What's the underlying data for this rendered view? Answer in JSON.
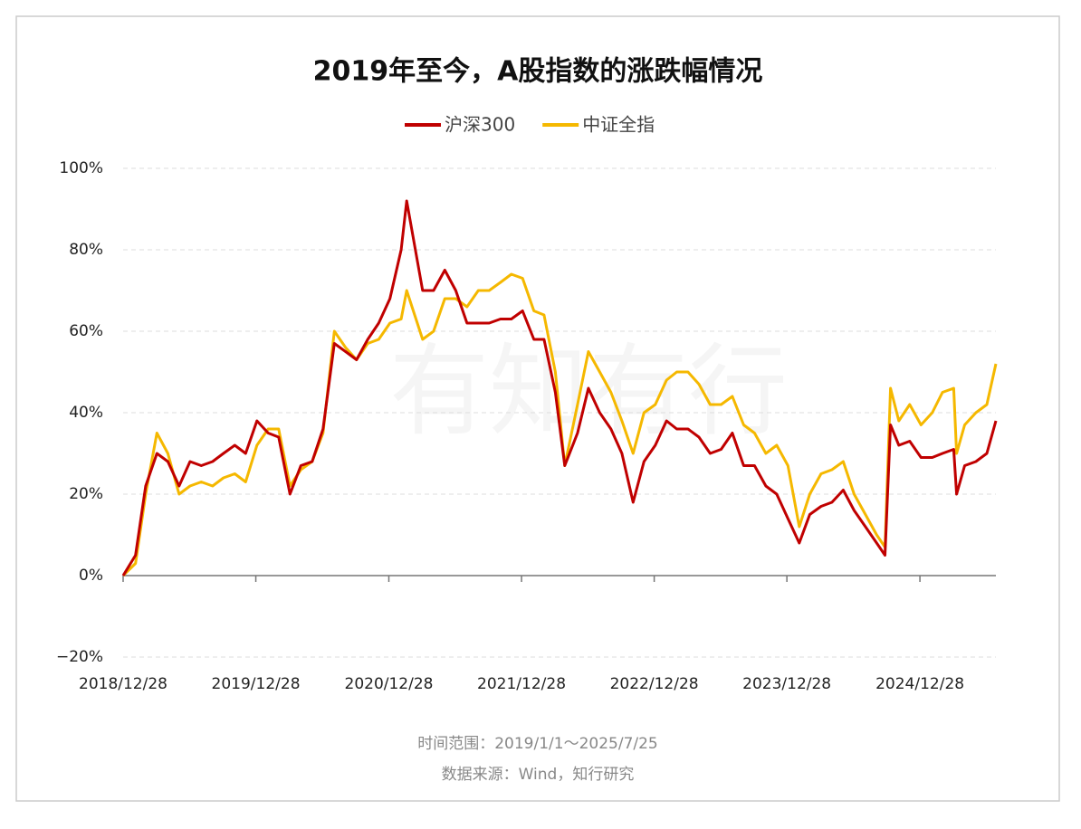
{
  "chart_data": {
    "type": "line",
    "title": "2019年至今，A股指数的涨跌幅情况",
    "notes": [
      "时间范围：2019/1/1～2025/7/25",
      "数据来源：Wind，知行研究"
    ],
    "watermark": "有知有行",
    "x": [
      "2018/12/28",
      "2019/01/31",
      "2019/02/28",
      "2019/03/31",
      "2019/04/30",
      "2019/05/31",
      "2019/06/30",
      "2019/07/31",
      "2019/08/31",
      "2019/09/30",
      "2019/10/31",
      "2019/11/30",
      "2019/12/31",
      "2020/01/31",
      "2020/02/29",
      "2020/03/31",
      "2020/04/30",
      "2020/05/31",
      "2020/06/30",
      "2020/07/31",
      "2020/08/31",
      "2020/09/30",
      "2020/10/31",
      "2020/11/30",
      "2020/12/31",
      "2021/01/31",
      "2021/02/15",
      "2021/03/31",
      "2021/04/30",
      "2021/05/31",
      "2021/06/30",
      "2021/07/31",
      "2021/08/31",
      "2021/09/30",
      "2021/10/31",
      "2021/11/30",
      "2021/12/31",
      "2022/01/31",
      "2022/02/28",
      "2022/03/31",
      "2022/04/26",
      "2022/05/31",
      "2022/06/30",
      "2022/07/31",
      "2022/08/31",
      "2022/09/30",
      "2022/10/31",
      "2022/11/30",
      "2022/12/31",
      "2023/01/31",
      "2023/02/28",
      "2023/03/31",
      "2023/04/30",
      "2023/05/31",
      "2023/06/30",
      "2023/07/31",
      "2023/08/31",
      "2023/09/30",
      "2023/10/31",
      "2023/11/30",
      "2023/12/31",
      "2024/01/31",
      "2024/02/29",
      "2024/03/31",
      "2024/04/30",
      "2024/05/31",
      "2024/06/30",
      "2024/07/31",
      "2024/08/31",
      "2024/09/23",
      "2024/10/08",
      "2024/10/31",
      "2024/11/30",
      "2024/12/31",
      "2025/01/31",
      "2025/02/28",
      "2025/03/31",
      "2025/04/08",
      "2025/04/30",
      "2025/05/31",
      "2025/06/30",
      "2025/07/25"
    ],
    "series": [
      {
        "name": "沪深300",
        "color": "#c00000",
        "values": [
          0,
          5,
          22,
          30,
          28,
          22,
          28,
          27,
          28,
          30,
          32,
          30,
          38,
          35,
          34,
          20,
          27,
          28,
          36,
          57,
          55,
          53,
          58,
          62,
          68,
          80,
          92,
          70,
          70,
          75,
          70,
          62,
          62,
          62,
          63,
          63,
          65,
          58,
          58,
          45,
          27,
          35,
          46,
          40,
          36,
          30,
          18,
          28,
          32,
          38,
          36,
          36,
          34,
          30,
          31,
          35,
          27,
          27,
          22,
          20,
          14,
          8,
          15,
          17,
          18,
          21,
          16,
          12,
          8,
          5,
          37,
          32,
          33,
          29,
          29,
          30,
          31,
          20,
          27,
          28,
          30,
          38
        ]
      },
      {
        "name": "中证全指",
        "color": "#f5b800",
        "values": [
          0,
          3,
          20,
          35,
          30,
          20,
          22,
          23,
          22,
          24,
          25,
          23,
          32,
          36,
          36,
          22,
          26,
          28,
          35,
          60,
          56,
          53,
          57,
          58,
          62,
          63,
          70,
          58,
          60,
          68,
          68,
          66,
          70,
          70,
          72,
          74,
          73,
          65,
          64,
          50,
          27,
          42,
          55,
          50,
          45,
          38,
          30,
          40,
          42,
          48,
          50,
          50,
          47,
          42,
          42,
          44,
          37,
          35,
          30,
          32,
          27,
          12,
          20,
          25,
          26,
          28,
          20,
          15,
          10,
          7,
          46,
          38,
          42,
          37,
          40,
          45,
          46,
          30,
          37,
          40,
          42,
          52
        ]
      }
    ],
    "xlim": [
      "2018/12/28",
      "2025/07/25"
    ],
    "xticks": [
      "2018/12/28",
      "2019/12/28",
      "2020/12/28",
      "2021/12/28",
      "2022/12/28",
      "2023/12/28",
      "2024/12/28"
    ],
    "ylim": [
      -20,
      100
    ],
    "yticks": [
      {
        "value": -20,
        "label": "−20%"
      },
      {
        "value": 0,
        "label": "0%"
      },
      {
        "value": 20,
        "label": "20%"
      },
      {
        "value": 40,
        "label": "40%"
      },
      {
        "value": 60,
        "label": "60%"
      },
      {
        "value": 80,
        "label": "80%"
      },
      {
        "value": 100,
        "label": "100%"
      }
    ],
    "grid": true,
    "legend": "top"
  }
}
